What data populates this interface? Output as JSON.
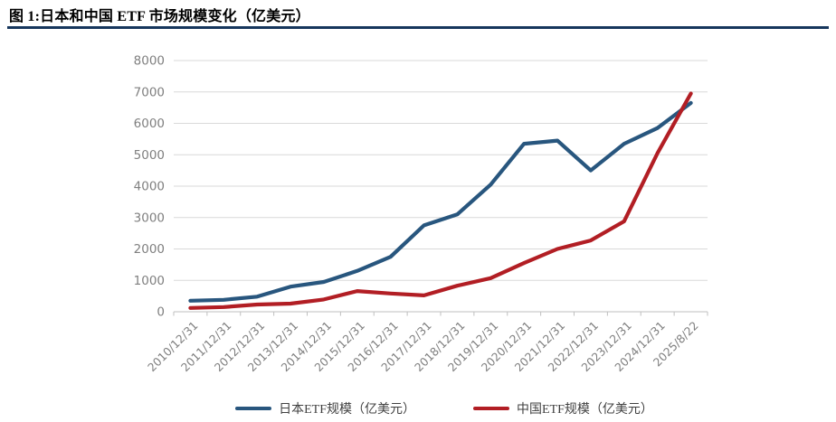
{
  "figure": {
    "title": "图 1:日本和中国 ETF 市场规模变化（亿美元）"
  },
  "chart_data": {
    "type": "line",
    "title": "图 1:日本和中国 ETF 市场规模变化（亿美元）",
    "categories": [
      "2010/12/31",
      "2011/12/31",
      "2012/12/31",
      "2013/12/31",
      "2014/12/31",
      "2015/12/31",
      "2016/12/31",
      "2017/12/31",
      "2018/12/31",
      "2019/12/31",
      "2020/12/31",
      "2021/12/31",
      "2022/12/31",
      "2023/12/31",
      "2024/12/31",
      "2025/8/22"
    ],
    "series": [
      {
        "key": "japan-etf",
        "name": "日本ETF规模（亿美元）",
        "color": "#28567E",
        "values": [
          350,
          380,
          480,
          800,
          950,
          1300,
          1750,
          2750,
          3100,
          4050,
          5350,
          5450,
          4500,
          5350,
          5850,
          6650
        ]
      },
      {
        "key": "china-etf",
        "name": "中国ETF规模（亿美元）",
        "color": "#B21E24",
        "values": [
          120,
          150,
          230,
          260,
          390,
          660,
          580,
          520,
          830,
          1070,
          1550,
          2000,
          2270,
          2880,
          5050,
          6950
        ]
      }
    ],
    "xlabel": "",
    "ylabel": "",
    "ylim": [
      0,
      8000
    ],
    "ytick_interval": 1000,
    "grid": true,
    "legend_position": "bottom",
    "colors": {
      "title_rule": "#16365C",
      "axis_text": "#7F7F7F",
      "gridline": "#D9D9D9",
      "axis_line": "#BFBFBF"
    }
  }
}
